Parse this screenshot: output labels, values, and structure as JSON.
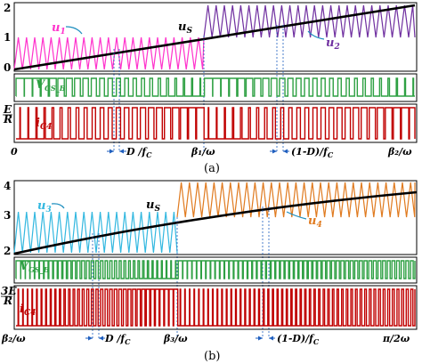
{
  "panel_a": {
    "y_ticks": [
      "2",
      "1",
      "0"
    ],
    "labels": {
      "u1": "u",
      "u1_sub": "1",
      "u2": "u",
      "u2_sub": "2",
      "us": "u",
      "us_sub": "S",
      "vgs": "V",
      "vgs_sub": "GS_B",
      "ic": "i",
      "ic_sub": "C4",
      "e_num": "E",
      "e_den": "R"
    },
    "x_ticks": [
      "0",
      "β₁/ω",
      "β₂/ω"
    ],
    "d_label": "D /f",
    "d_sub": "C",
    "one_minus_d_label": "(1-D)/f",
    "one_minus_d_sub": "C",
    "caption": "(a)"
  },
  "panel_b": {
    "y_ticks": [
      "4",
      "3",
      "2"
    ],
    "labels": {
      "u3": "u",
      "u3_sub": "3",
      "u4": "u",
      "u4_sub": "4",
      "us": "u",
      "us_sub": "S",
      "vgs": "V",
      "vgs_sub": "GS_B",
      "ic": "i",
      "ic_sub": "C4",
      "e_num": "3E",
      "e_den": "R"
    },
    "x_ticks": [
      "β₂/ω",
      "β₃/ω",
      "π/2ω"
    ],
    "d_label": "D /f",
    "d_sub": "C",
    "one_minus_d_label": "(1-D)/f",
    "one_minus_d_sub": "C",
    "caption": "(b)"
  },
  "colors": {
    "u1": "#ff33cc",
    "u2": "#7030a0",
    "u3": "#33b8e0",
    "u4": "#e07b20",
    "vgs": "#2ea043",
    "ic": "#c00000",
    "us": "#000000",
    "dim": "#1f5fbf"
  }
}
